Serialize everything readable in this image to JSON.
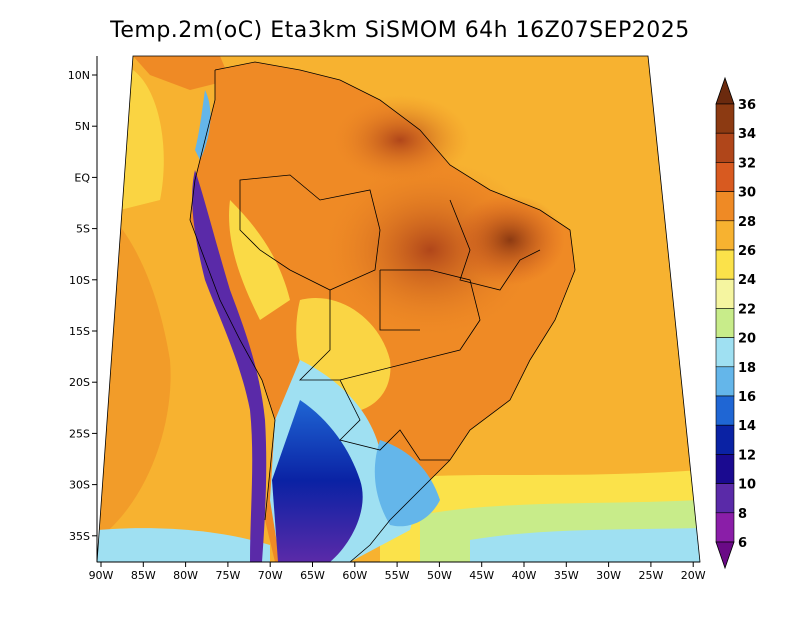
{
  "title": "Temp.2m(oC) Eta3km SiSMOM 64h 16Z07SEP2025",
  "lat_labels": [
    "10N",
    "5N",
    "EQ",
    "5S",
    "10S",
    "15S",
    "20S",
    "25S",
    "30S",
    "35S"
  ],
  "lon_labels": [
    "90W",
    "85W",
    "80W",
    "75W",
    "70W",
    "65W",
    "60W",
    "55W",
    "50W",
    "45W",
    "40W",
    "35W",
    "30W",
    "25W",
    "20W"
  ],
  "colorbar": {
    "labels": [
      "36",
      "34",
      "32",
      "30",
      "28",
      "26",
      "24",
      "22",
      "20",
      "18",
      "16",
      "14",
      "12",
      "10",
      "8",
      "6"
    ],
    "colors": [
      "#6b2a0e",
      "#8c3a12",
      "#b0461a",
      "#d85a20",
      "#ef8a25",
      "#f7b230",
      "#fbe24a",
      "#f5f5a0",
      "#c8ec8a",
      "#9fe0f2",
      "#64b6ea",
      "#1f66d4",
      "#0a22a4",
      "#1a0a90",
      "#5a2aa8",
      "#8a1ea8",
      "#6a0a86"
    ],
    "min": 6,
    "max": 36,
    "step": 2
  }
}
